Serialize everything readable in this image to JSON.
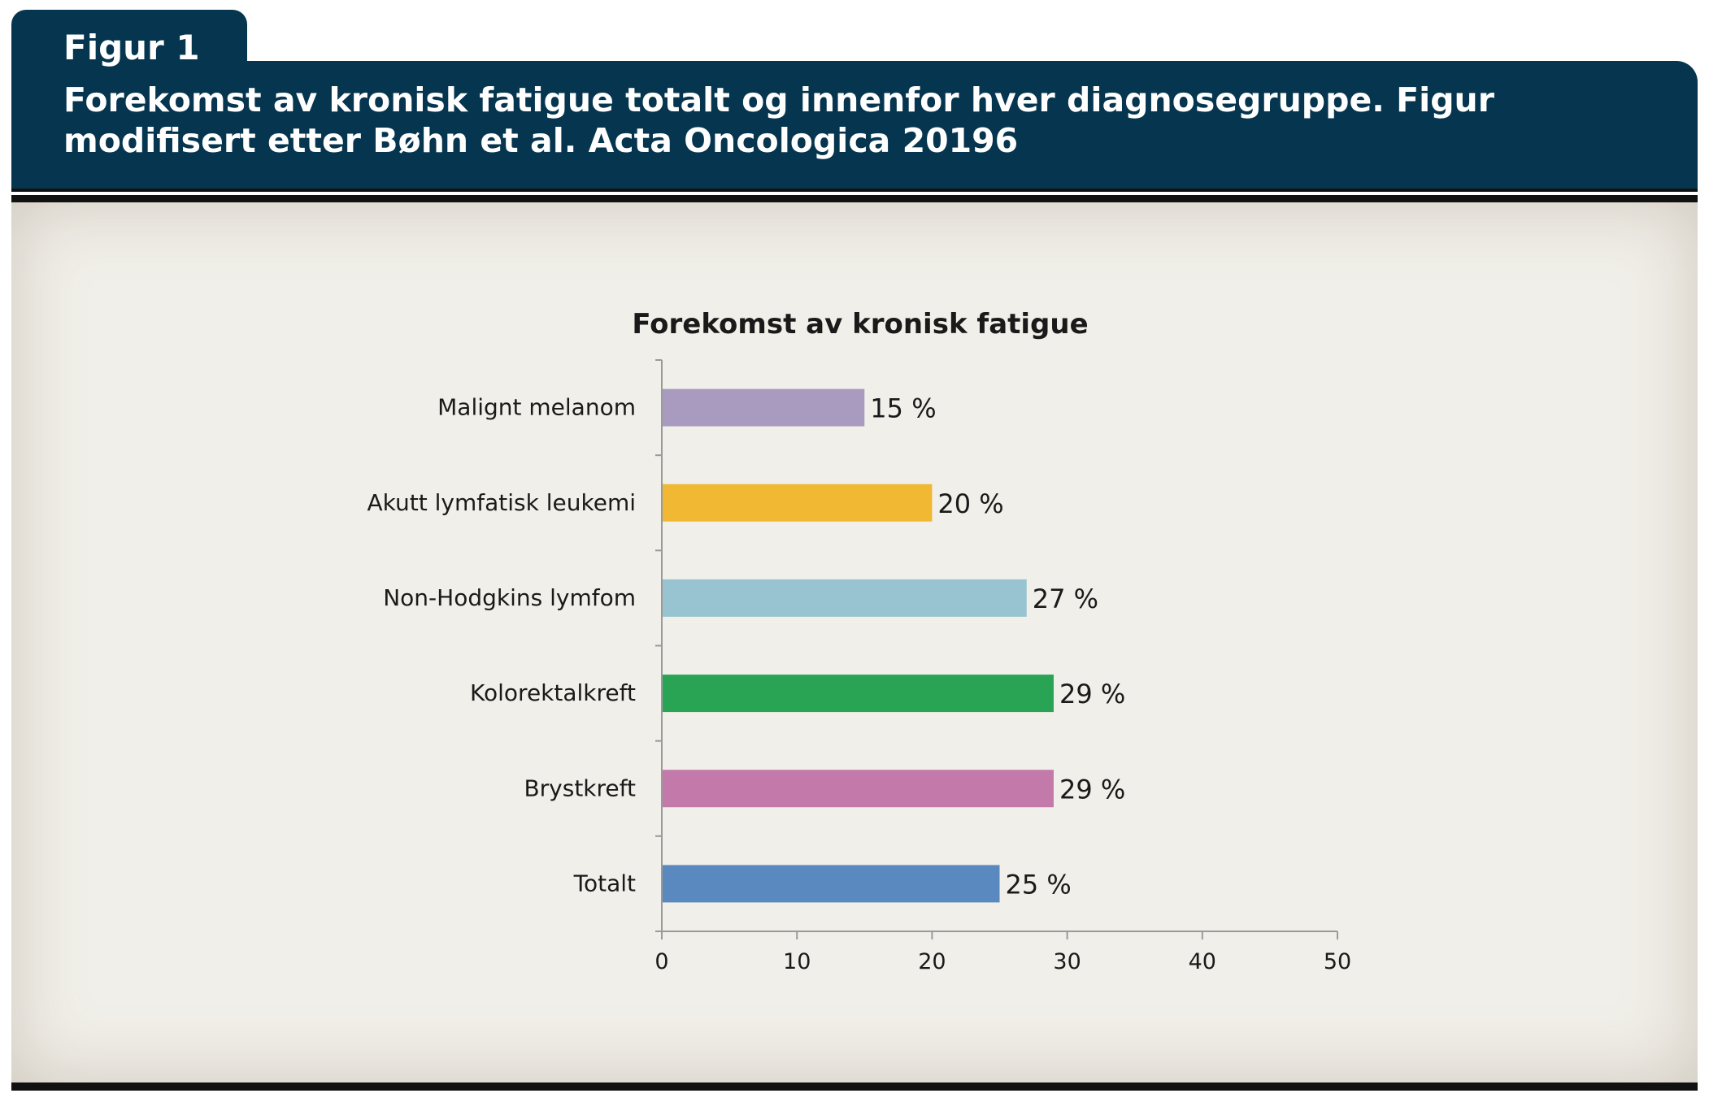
{
  "figure": {
    "label": "Figur 1",
    "caption": "Forekomst av kronisk fatigue totalt og innenfor hver diagnosegruppe. Figur modifisert etter Bøhn et al. Acta Oncologica 20196"
  },
  "chart_data": {
    "type": "bar",
    "orientation": "horizontal",
    "title": "Forekomst av kronisk fatigue",
    "xlabel": "",
    "ylabel": "",
    "xlim": [
      0,
      50
    ],
    "xticks": [
      0,
      10,
      20,
      30,
      40,
      50
    ],
    "grid": false,
    "legend": "none",
    "categories": [
      "Malignt melanom",
      "Akutt lymfatisk leukemi",
      "Non-Hodgkins lymfom",
      "Kolorektalkreft",
      "Brystkreft",
      "Totalt"
    ],
    "values": [
      15,
      20,
      27,
      29,
      29,
      25
    ],
    "value_labels": [
      "15 %",
      "20 %",
      "27 %",
      "29 %",
      "29 %",
      "25 %"
    ],
    "colors": [
      "#a99bbf",
      "#f0b833",
      "#97c4d0",
      "#29a455",
      "#c479ab",
      "#5a89bf"
    ]
  }
}
